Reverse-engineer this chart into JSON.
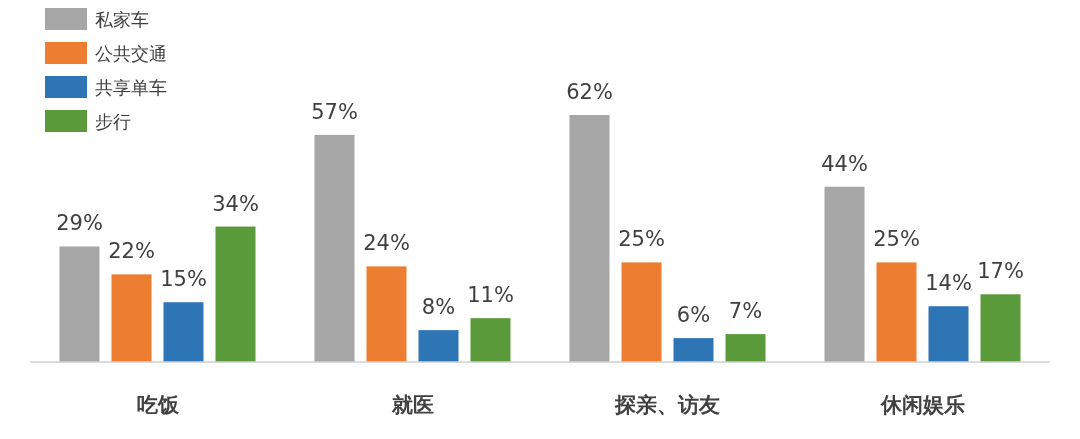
{
  "chart_data": {
    "type": "bar",
    "categories": [
      "吃饭",
      "就医",
      "探亲、访友",
      "休闲娱乐"
    ],
    "legend": "top left",
    "series": [
      {
        "name": "私家车",
        "color": "#a6a6a6",
        "values": [
          29,
          57,
          62,
          44
        ],
        "value_labels": [
          "29%",
          "57%",
          "62%",
          "44%"
        ]
      },
      {
        "name": "公共交通",
        "color": "#ed7d31",
        "values": [
          22,
          24,
          25,
          25
        ],
        "value_labels": [
          "22%",
          "24%",
          "25%",
          "25%"
        ]
      },
      {
        "name": "共享单车",
        "color": "#2e75b6",
        "values": [
          15,
          8,
          6,
          14
        ],
        "value_labels": [
          "15%",
          "8%",
          "6%",
          "14%"
        ]
      },
      {
        "name": "步行",
        "color": "#5a9a3a",
        "values": [
          34,
          11,
          7,
          17
        ],
        "value_labels": [
          "34%",
          "11%",
          "7%",
          "17%"
        ]
      }
    ]
  }
}
